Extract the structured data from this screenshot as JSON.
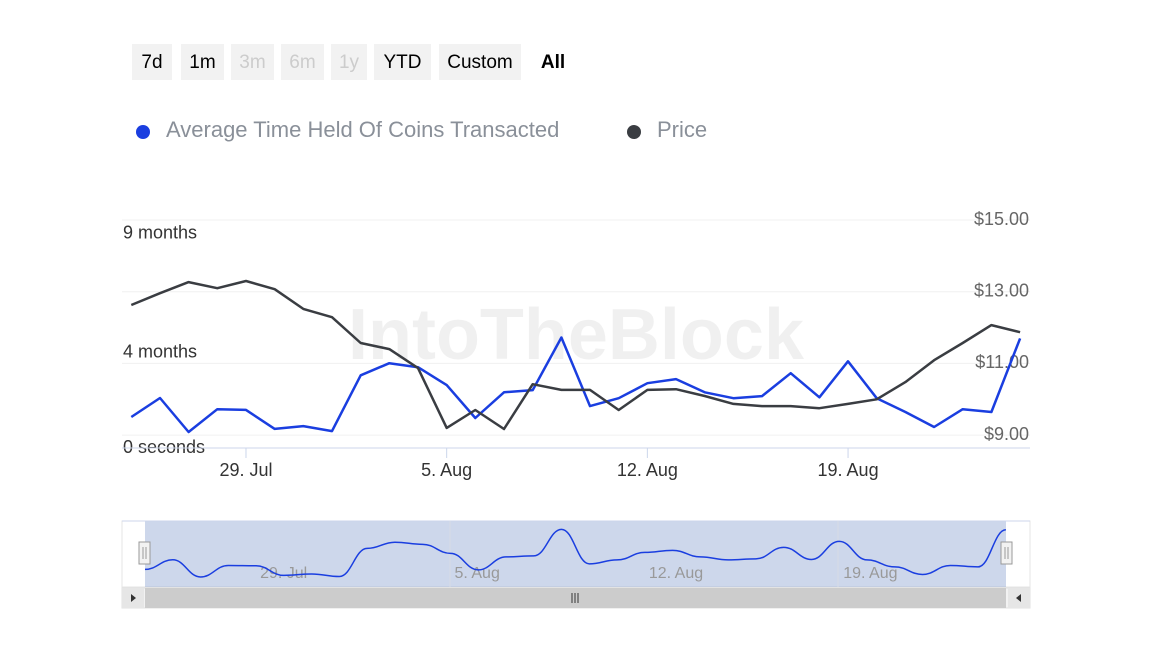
{
  "chart_data": {
    "type": "line",
    "range_buttons": [
      {
        "label": "7d",
        "state": "normal"
      },
      {
        "label": "1m",
        "state": "normal"
      },
      {
        "label": "3m",
        "state": "disabled"
      },
      {
        "label": "6m",
        "state": "disabled"
      },
      {
        "label": "1y",
        "state": "disabled"
      },
      {
        "label": "YTD",
        "state": "normal"
      },
      {
        "label": "Custom",
        "state": "normal"
      },
      {
        "label": "All",
        "state": "selected"
      }
    ],
    "watermark": "IntoTheBlock",
    "categories": [
      null,
      null,
      null,
      null,
      "29. Jul",
      null,
      null,
      null,
      null,
      null,
      null,
      "5. Aug",
      null,
      null,
      null,
      null,
      null,
      null,
      "12. Aug",
      null,
      null,
      null,
      null,
      null,
      null,
      "19. Aug",
      null,
      null,
      null,
      null,
      null,
      null
    ],
    "series": [
      {
        "name": "Average Time Held Of Coins Transacted",
        "color": "#1a3ee0",
        "values": [
          1.3,
          2.1,
          0.67,
          1.63,
          1.6,
          0.8,
          0.92,
          0.71,
          3.05,
          3.56,
          3.39,
          2.64,
          1.26,
          2.34,
          2.43,
          4.64,
          1.76,
          2.09,
          2.72,
          2.89,
          2.34,
          2.09,
          2.18,
          3.14,
          2.13,
          3.64,
          2.09,
          1.51,
          0.88,
          1.63,
          1.51,
          4.6
        ]
      },
      {
        "name": "Price",
        "color": "#3a3d42",
        "axis": "y2",
        "values": [
          12.63,
          12.96,
          13.27,
          13.1,
          13.3,
          13.07,
          12.52,
          12.29,
          11.57,
          11.4,
          10.87,
          9.2,
          9.7,
          9.17,
          10.42,
          10.26,
          10.26,
          9.7,
          10.26,
          10.28,
          10.09,
          9.87,
          9.81,
          9.81,
          9.75,
          9.87,
          10.0,
          10.48,
          11.09,
          11.57,
          12.07,
          11.87
        ]
      }
    ],
    "ylim": [
      0,
      10.2
    ],
    "yticks": [
      {
        "value": 0,
        "label": "0 seconds"
      },
      {
        "value": 4,
        "label": "4 months"
      },
      {
        "value": 9,
        "label": "9 months"
      }
    ],
    "y2lim": [
      8.64,
      15.42
    ],
    "y2ticks": [
      {
        "value": 9,
        "label": "$9.00"
      },
      {
        "value": 11,
        "label": "$11.00"
      },
      {
        "value": 13,
        "label": "$13.00"
      },
      {
        "value": 15,
        "label": "$15.00"
      }
    ],
    "grid": true
  }
}
